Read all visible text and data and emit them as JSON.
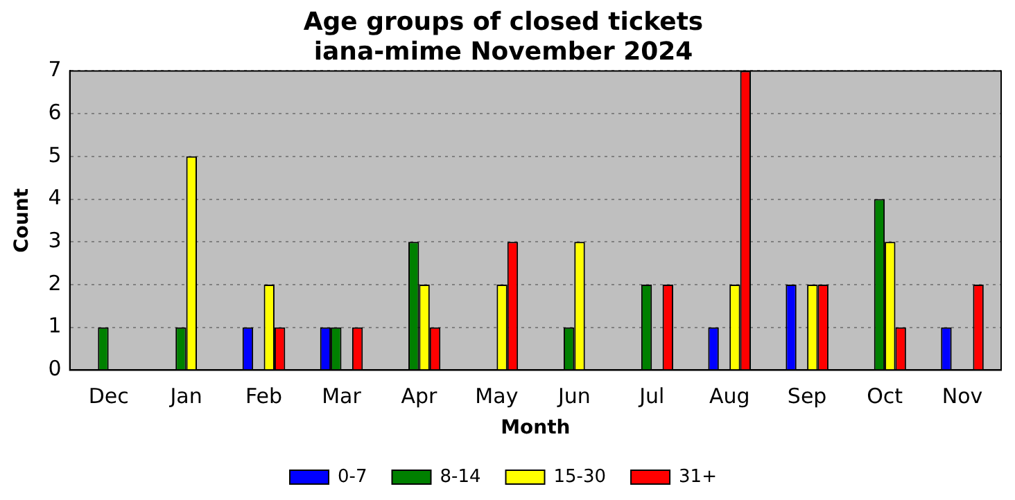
{
  "chart_data": {
    "type": "bar",
    "title": "Age groups of closed tickets\niana-mime November 2024",
    "xlabel": "Month",
    "ylabel": "Count",
    "categories": [
      "Dec",
      "Jan",
      "Feb",
      "Mar",
      "Apr",
      "May",
      "Jun",
      "Jul",
      "Aug",
      "Sep",
      "Oct",
      "Nov"
    ],
    "series": [
      {
        "name": "0-7",
        "color": "#0000ff",
        "values": [
          0,
          0,
          1,
          1,
          0,
          0,
          0,
          0,
          1,
          2,
          0,
          1
        ]
      },
      {
        "name": "8-14",
        "color": "#008000",
        "values": [
          1,
          1,
          0,
          1,
          3,
          0,
          1,
          2,
          0,
          0,
          4,
          0
        ]
      },
      {
        "name": "15-30",
        "color": "#ffff00",
        "values": [
          0,
          5,
          2,
          0,
          2,
          2,
          3,
          0,
          2,
          2,
          3,
          0
        ]
      },
      {
        "name": "31+",
        "color": "#ff0000",
        "values": [
          0,
          0,
          1,
          1,
          1,
          3,
          0,
          2,
          7,
          2,
          1,
          2
        ]
      }
    ],
    "ylim": [
      0,
      7
    ],
    "yticks": [
      0,
      1,
      2,
      3,
      4,
      5,
      6,
      7
    ],
    "grid": "y",
    "legend": "bottom"
  }
}
